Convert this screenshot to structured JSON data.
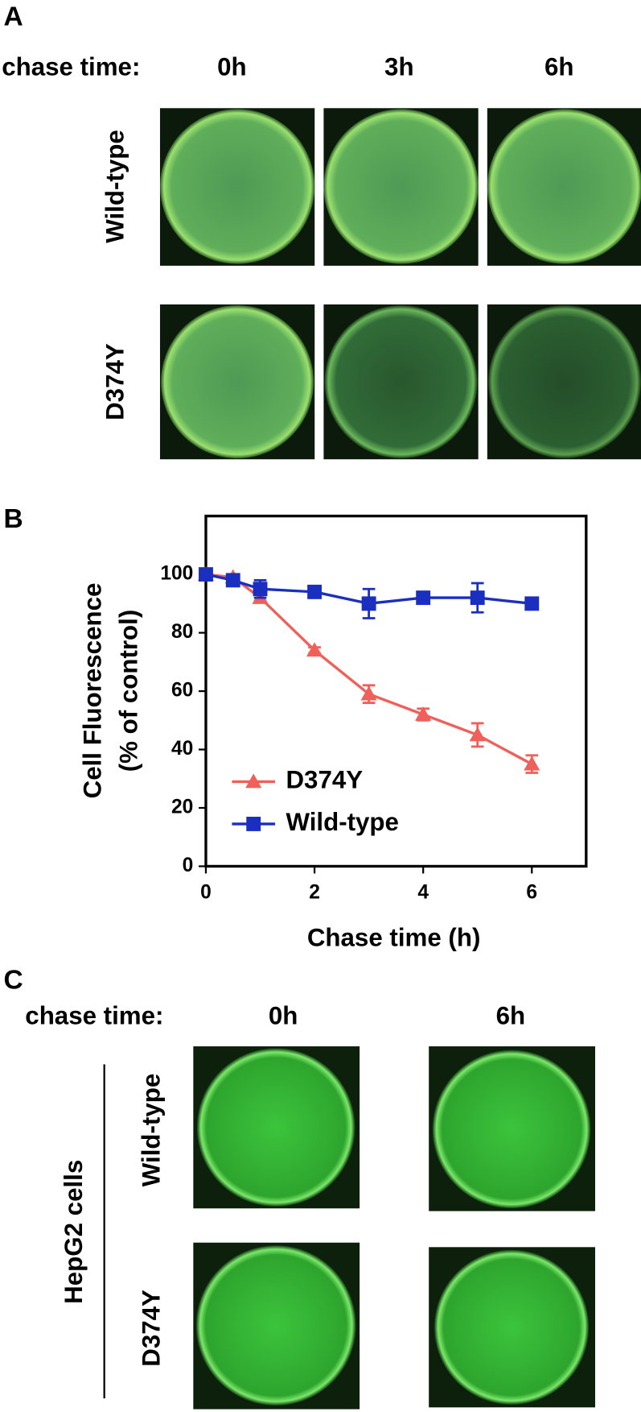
{
  "panel_a": {
    "label": "A",
    "chase_label": "chase time:",
    "times": [
      "0h",
      "3h",
      "6h"
    ],
    "rows": [
      "Wild-type",
      "D374Y"
    ]
  },
  "chart_data": {
    "type": "line",
    "panel_label": "B",
    "y_label": [
      "Cell Fluorescence",
      "(% of control)"
    ],
    "x_label": "Chase time (h)",
    "x": [
      0,
      0.5,
      1,
      2,
      3,
      4,
      5,
      6
    ],
    "series": [
      {
        "name": "D374Y",
        "color": "#f0605a",
        "marker": "triangle",
        "values": [
          100,
          99,
          92,
          74,
          59,
          52,
          45,
          35
        ],
        "errors": [
          1,
          1,
          1,
          1,
          3,
          2,
          4,
          3
        ]
      },
      {
        "name": "Wild-type",
        "color": "#1a2fbf",
        "marker": "square",
        "values": [
          100,
          98,
          95,
          94,
          90,
          92,
          92,
          90
        ],
        "errors": [
          1,
          2,
          3,
          1,
          5,
          1,
          5,
          2
        ]
      }
    ],
    "xlim": [
      0,
      7
    ],
    "xticks": [
      0,
      2,
      4,
      6
    ],
    "ylim": [
      0,
      120
    ],
    "yticks": [
      0,
      20,
      40,
      60,
      80,
      100
    ]
  },
  "panel_c": {
    "label": "C",
    "chase_label": "chase time:",
    "times": [
      "0h",
      "6h"
    ],
    "group": "HepG2 cells",
    "rows": [
      "Wild-type",
      "D374Y"
    ]
  }
}
